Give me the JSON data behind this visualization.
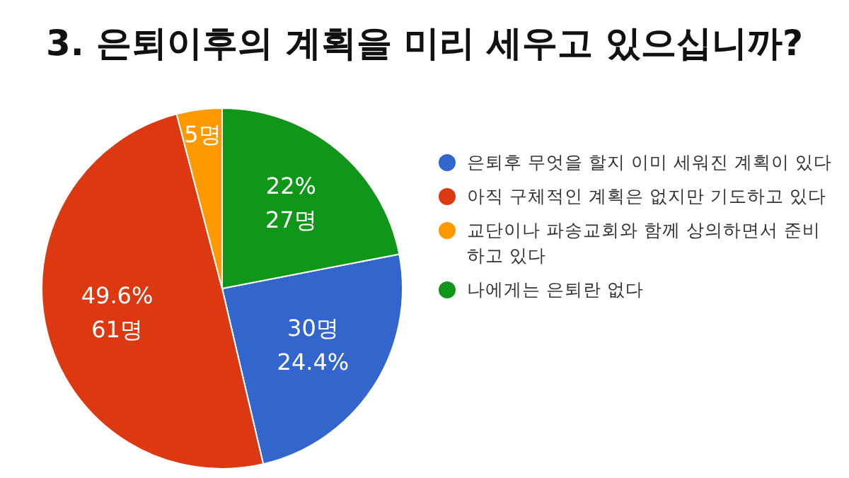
{
  "chart_data": {
    "type": "pie",
    "title": "3. 은퇴이후의 계획을 미리 세우고 있으십니까?",
    "categories": [
      "은퇴후 무엇을 할지 이미 세워진 계획이 있다",
      "아직 구체적인 계획은 없지만 기도하고 있다",
      "교단이나 파송교회와 함께 상의하면서 준비하고 있다",
      "나에게는 은퇴란 없다"
    ],
    "values": [
      30,
      61,
      5,
      27
    ],
    "colors": [
      "#3366cc",
      "#dc3912",
      "#ff9900",
      "#109618"
    ],
    "value_labels": [
      "30명\n24.4%",
      "49.6%\n61명",
      "5명",
      "22%\n27명"
    ],
    "legend": "right"
  }
}
